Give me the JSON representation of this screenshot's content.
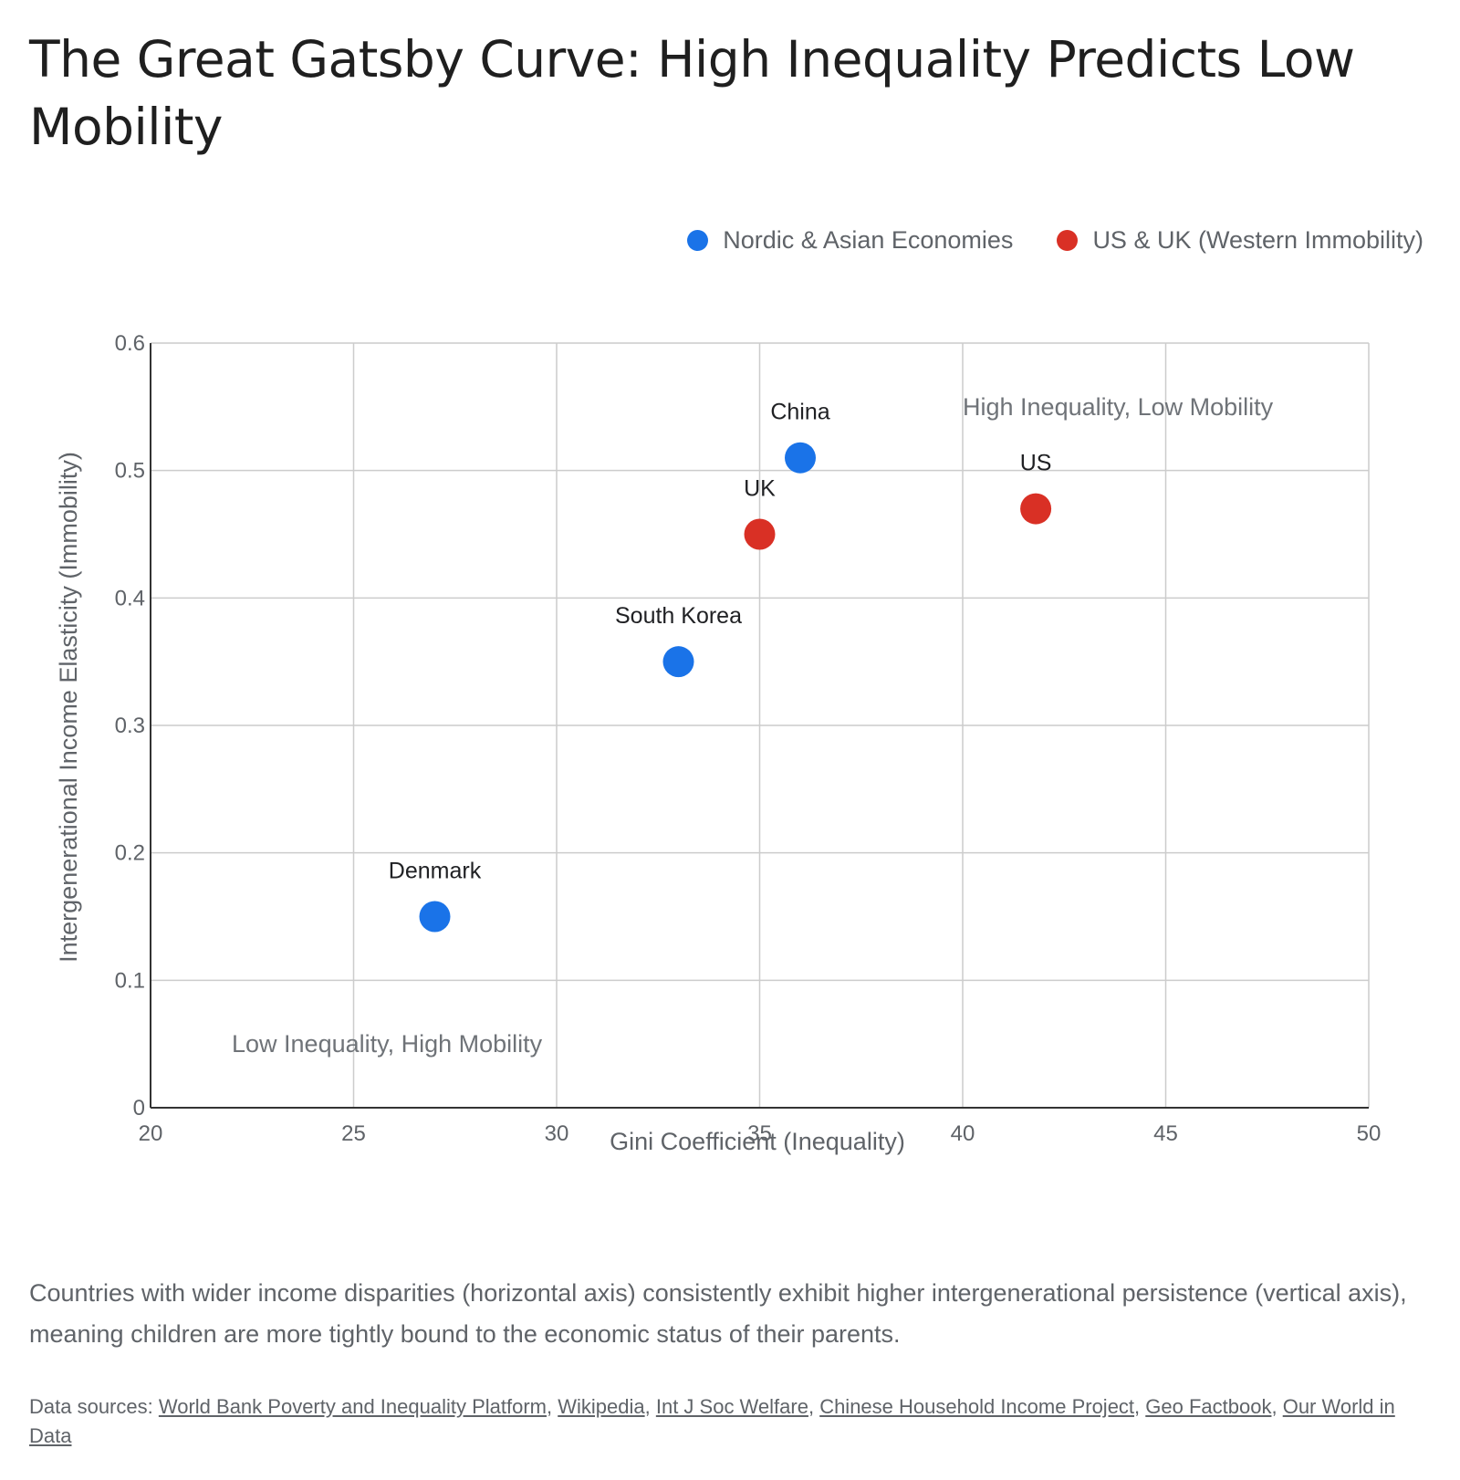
{
  "title": "The Great Gatsby Curve: High Inequality Predicts Low Mobility",
  "legend": [
    {
      "label": "Nordic & Asian Economies",
      "color": "#1a73e8"
    },
    {
      "label": "US & UK (Western Immobility)",
      "color": "#d93025"
    }
  ],
  "chart_data": {
    "type": "scatter",
    "xlabel": "Gini Coefficient (Inequality)",
    "ylabel": "Intergenerational Income Elasticity (Immobility)",
    "xlim": [
      20,
      50
    ],
    "ylim": [
      0,
      0.6
    ],
    "xticks": [
      "20",
      "25",
      "30",
      "35",
      "40",
      "45",
      "50"
    ],
    "yticks": [
      "0",
      "0.1",
      "0.2",
      "0.3",
      "0.4",
      "0.5",
      "0.6"
    ],
    "grid": true,
    "legend_position": "top-right",
    "series": [
      {
        "name": "Nordic & Asian Economies",
        "color": "#1a73e8",
        "points": [
          {
            "label": "Denmark",
            "x": 27,
            "y": 0.15
          },
          {
            "label": "South Korea",
            "x": 33,
            "y": 0.35
          },
          {
            "label": "China",
            "x": 36,
            "y": 0.51
          }
        ]
      },
      {
        "name": "US & UK (Western Immobility)",
        "color": "#d93025",
        "points": [
          {
            "label": "UK",
            "x": 35,
            "y": 0.45
          },
          {
            "label": "US",
            "x": 41.8,
            "y": 0.47
          }
        ]
      }
    ],
    "annotations": [
      {
        "text": "High Inequality, Low Mobility",
        "x": 40,
        "y": 0.55
      },
      {
        "text": "Low Inequality, High Mobility",
        "x": 22,
        "y": 0.05
      }
    ]
  },
  "caption": "Countries with wider income disparities (horizontal axis) consistently exhibit higher intergenerational persistence (vertical axis), meaning children are more tightly bound to the economic status of their parents.",
  "sources": {
    "prefix": "Data sources:",
    "links": [
      "World Bank Poverty and Inequality Platform",
      "Wikipedia",
      "Int J Soc Welfare",
      "Chinese Household Income Project",
      "Geo Factbook",
      "Our World in Data"
    ]
  }
}
